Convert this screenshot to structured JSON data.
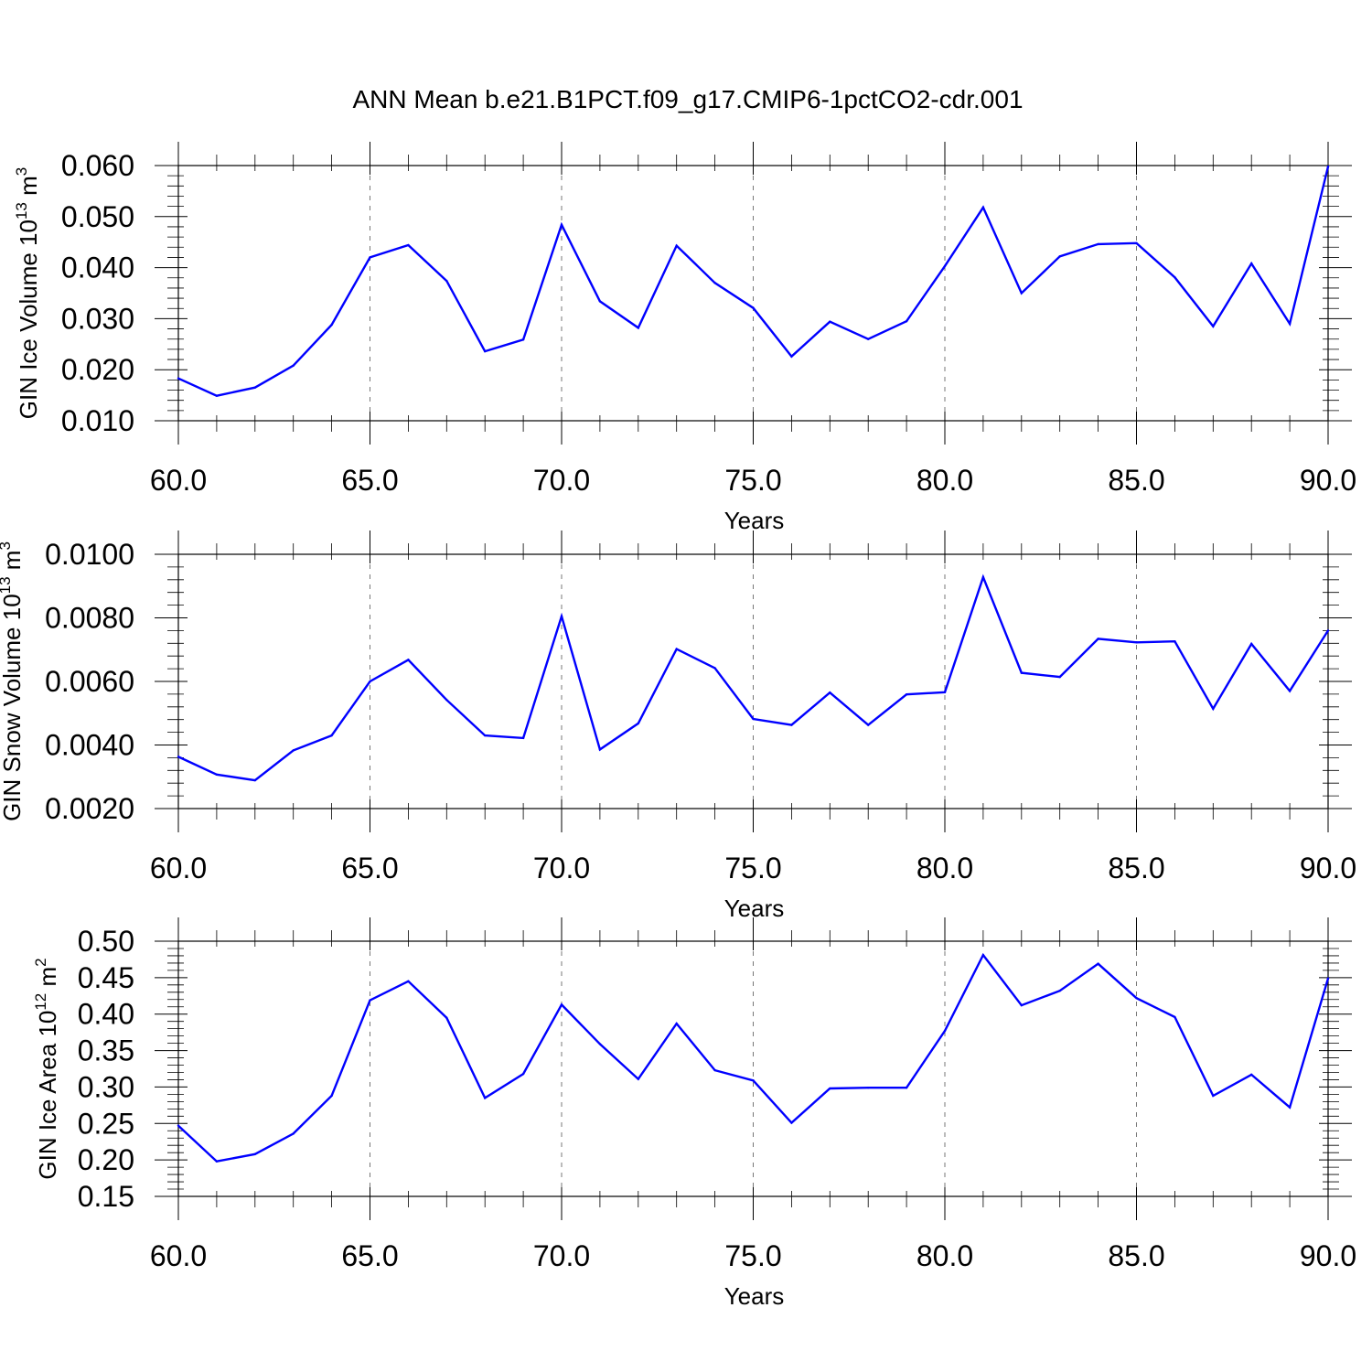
{
  "title": "ANN Mean b.e21.B1PCT.f09_g17.CMIP6-1pctCO2-cdr.001",
  "colors": {
    "line": "#0000ff",
    "grid": "#777777",
    "axis": "#000000"
  },
  "chart_data": [
    {
      "type": "line",
      "xlabel": "Years",
      "ylabel": {
        "prefix": "GIN Ice Volume 10",
        "exponent": "13",
        "unit": " m",
        "unit_exponent": "3"
      },
      "xlim": [
        60,
        90
      ],
      "ylim": [
        0.01,
        0.06
      ],
      "xticks": [
        "60.0",
        "65.0",
        "70.0",
        "75.0",
        "80.0",
        "85.0",
        "90.0"
      ],
      "yticks": [
        "0.010",
        "0.020",
        "0.030",
        "0.040",
        "0.050",
        "0.060"
      ],
      "grid": "vertical dashed at major x ticks",
      "x": [
        60,
        61,
        62,
        63,
        64,
        65,
        66,
        67,
        68,
        69,
        70,
        71,
        72,
        73,
        74,
        75,
        76,
        77,
        78,
        79,
        80,
        81,
        82,
        83,
        84,
        85,
        86,
        87,
        88,
        89,
        90
      ],
      "series": [
        {
          "values": [
            0.0183,
            0.0149,
            0.0165,
            0.0208,
            0.0288,
            0.042,
            0.0444,
            0.0374,
            0.0236,
            0.0259,
            0.0484,
            0.0334,
            0.0282,
            0.0443,
            0.037,
            0.0321,
            0.0226,
            0.0294,
            0.026,
            0.0295,
            0.0403,
            0.0518,
            0.035,
            0.0422,
            0.0446,
            0.0448,
            0.0381,
            0.0285,
            0.0408,
            0.029,
            0.0598
          ]
        }
      ]
    },
    {
      "type": "line",
      "xlabel": "Years",
      "ylabel": {
        "prefix": "GIN Snow Volume 10",
        "exponent": "13",
        "unit": " m",
        "unit_exponent": "3"
      },
      "xlim": [
        60,
        90
      ],
      "ylim": [
        0.002,
        0.01
      ],
      "xticks": [
        "60.0",
        "65.0",
        "70.0",
        "75.0",
        "80.0",
        "85.0",
        "90.0"
      ],
      "yticks": [
        "0.0020",
        "0.0040",
        "0.0060",
        "0.0080",
        "0.0100"
      ],
      "grid": "vertical dashed at major x ticks",
      "x": [
        60,
        61,
        62,
        63,
        64,
        65,
        66,
        67,
        68,
        69,
        70,
        71,
        72,
        73,
        74,
        75,
        76,
        77,
        78,
        79,
        80,
        81,
        82,
        83,
        84,
        85,
        86,
        87,
        88,
        89,
        90
      ],
      "series": [
        {
          "values": [
            0.00363,
            0.00307,
            0.00289,
            0.00383,
            0.0043,
            0.006,
            0.00668,
            0.00542,
            0.0043,
            0.00422,
            0.00805,
            0.00386,
            0.00468,
            0.00702,
            0.00642,
            0.00482,
            0.00463,
            0.00565,
            0.00463,
            0.00559,
            0.00566,
            0.00928,
            0.00627,
            0.00614,
            0.00734,
            0.00723,
            0.00726,
            0.00514,
            0.00718,
            0.0057,
            0.0076
          ]
        }
      ]
    },
    {
      "type": "line",
      "xlabel": "Years",
      "ylabel": {
        "prefix": "GIN Ice Area 10",
        "exponent": "12",
        "unit": " m",
        "unit_exponent": "2"
      },
      "xlim": [
        60,
        90
      ],
      "ylim": [
        0.15,
        0.5
      ],
      "xticks": [
        "60.0",
        "65.0",
        "70.0",
        "75.0",
        "80.0",
        "85.0",
        "90.0"
      ],
      "yticks": [
        "0.15",
        "0.20",
        "0.25",
        "0.30",
        "0.35",
        "0.40",
        "0.45",
        "0.50"
      ],
      "grid": "vertical dashed at major x ticks",
      "x": [
        60,
        61,
        62,
        63,
        64,
        65,
        66,
        67,
        68,
        69,
        70,
        71,
        72,
        73,
        74,
        75,
        76,
        77,
        78,
        79,
        80,
        81,
        82,
        83,
        84,
        85,
        86,
        87,
        88,
        89,
        90
      ],
      "series": [
        {
          "values": [
            0.247,
            0.198,
            0.208,
            0.236,
            0.288,
            0.419,
            0.445,
            0.395,
            0.285,
            0.318,
            0.413,
            0.359,
            0.311,
            0.387,
            0.323,
            0.309,
            0.251,
            0.298,
            0.299,
            0.299,
            0.377,
            0.481,
            0.412,
            0.432,
            0.469,
            0.422,
            0.396,
            0.288,
            0.317,
            0.272,
            0.449
          ]
        }
      ]
    }
  ]
}
